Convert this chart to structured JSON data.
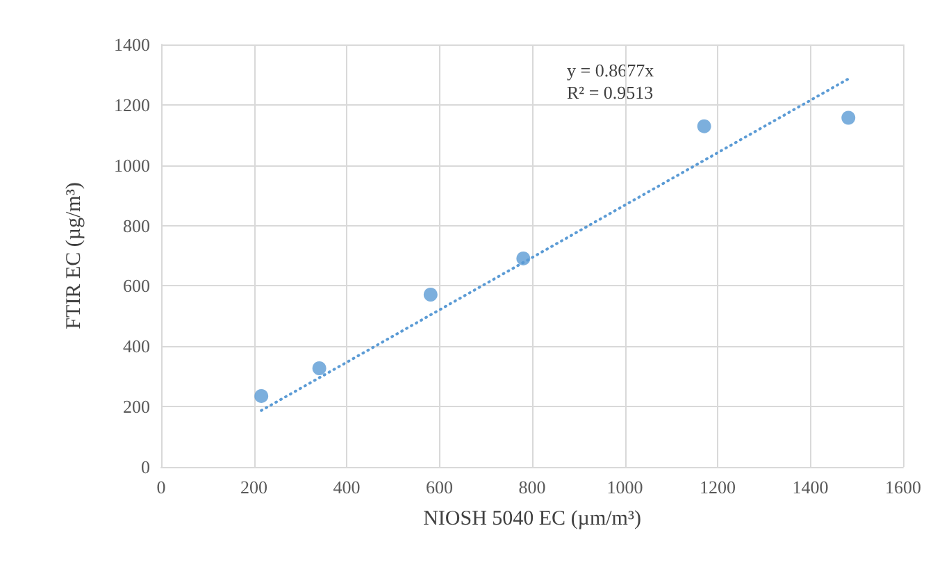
{
  "chart_data": {
    "type": "scatter",
    "xlabel": "NIOSH 5040 EC (µm/m³)",
    "ylabel": "FTIR EC (µg/m³)",
    "xlim": [
      0,
      1600
    ],
    "xticks": [
      0,
      200,
      400,
      600,
      800,
      1000,
      1200,
      1400,
      1600
    ],
    "ylim": [
      0,
      1400
    ],
    "yticks": [
      0,
      200,
      400,
      600,
      800,
      1000,
      1200,
      1400
    ],
    "grid": true,
    "marker": "circle",
    "annotations": [
      "y = 0.8677x",
      "R² = 0.9513"
    ],
    "series": [
      {
        "color": "#5b9bd5",
        "x": [
          216,
          341,
          581,
          781,
          1171,
          1482
        ],
        "values": [
          235,
          327,
          571,
          691,
          1129,
          1157
        ]
      },
      {
        "type": "line",
        "color": "#5b9bd5",
        "line_style": "dotted",
        "marker": "none",
        "x": [
          216,
          1482
        ],
        "values": [
          187,
          1286
        ]
      }
    ]
  }
}
